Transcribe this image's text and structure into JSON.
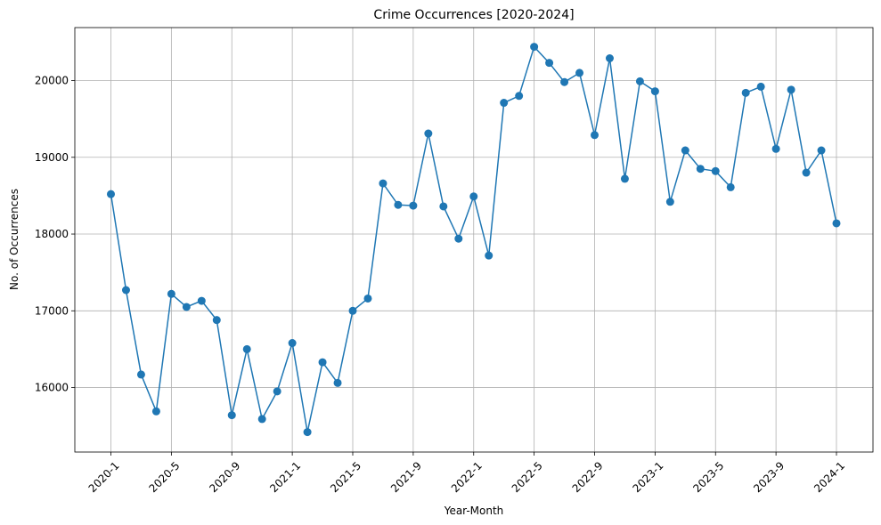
{
  "chart_data": {
    "type": "line",
    "title": "Crime Occurrences [2020-2024]",
    "xlabel": "Year-Month",
    "ylabel": "No. of Occurrences",
    "x": [
      "2020-1",
      "2020-2",
      "2020-3",
      "2020-4",
      "2020-5",
      "2020-6",
      "2020-7",
      "2020-8",
      "2020-9",
      "2020-10",
      "2020-11",
      "2020-12",
      "2021-1",
      "2021-2",
      "2021-3",
      "2021-4",
      "2021-5",
      "2021-6",
      "2021-7",
      "2021-8",
      "2021-9",
      "2021-10",
      "2021-11",
      "2021-12",
      "2022-1",
      "2022-2",
      "2022-3",
      "2022-4",
      "2022-5",
      "2022-6",
      "2022-7",
      "2022-8",
      "2022-9",
      "2022-10",
      "2022-11",
      "2022-12",
      "2023-1",
      "2023-2",
      "2023-3",
      "2023-4",
      "2023-5",
      "2023-6",
      "2023-7",
      "2023-8",
      "2023-9",
      "2023-10",
      "2023-11",
      "2023-12",
      "2024-1"
    ],
    "series": [
      {
        "values": [
          18520,
          17270,
          16170,
          15690,
          17220,
          17050,
          17130,
          16880,
          15640,
          16500,
          15590,
          15950,
          16580,
          15420,
          16330,
          16060,
          17000,
          17160,
          18660,
          18380,
          18370,
          19310,
          18360,
          17940,
          18490,
          17720,
          19710,
          19800,
          20440,
          20230,
          19980,
          20100,
          19290,
          20290,
          18720,
          19990,
          19860,
          18420,
          19090,
          18850,
          18820,
          18610,
          19840,
          19920,
          19110,
          19880,
          18800,
          19090,
          18140
        ],
        "color": "#1f77b4"
      }
    ],
    "xtick_labels": [
      "2020-1",
      "2020-5",
      "2020-9",
      "2021-1",
      "2021-5",
      "2021-9",
      "2022-1",
      "2022-5",
      "2022-9",
      "2023-1",
      "2023-5",
      "2023-9",
      "2024-1"
    ],
    "yticks": [
      16000,
      17000,
      18000,
      19000,
      20000
    ],
    "ylim": [
      15160,
      20690
    ],
    "grid": true
  }
}
